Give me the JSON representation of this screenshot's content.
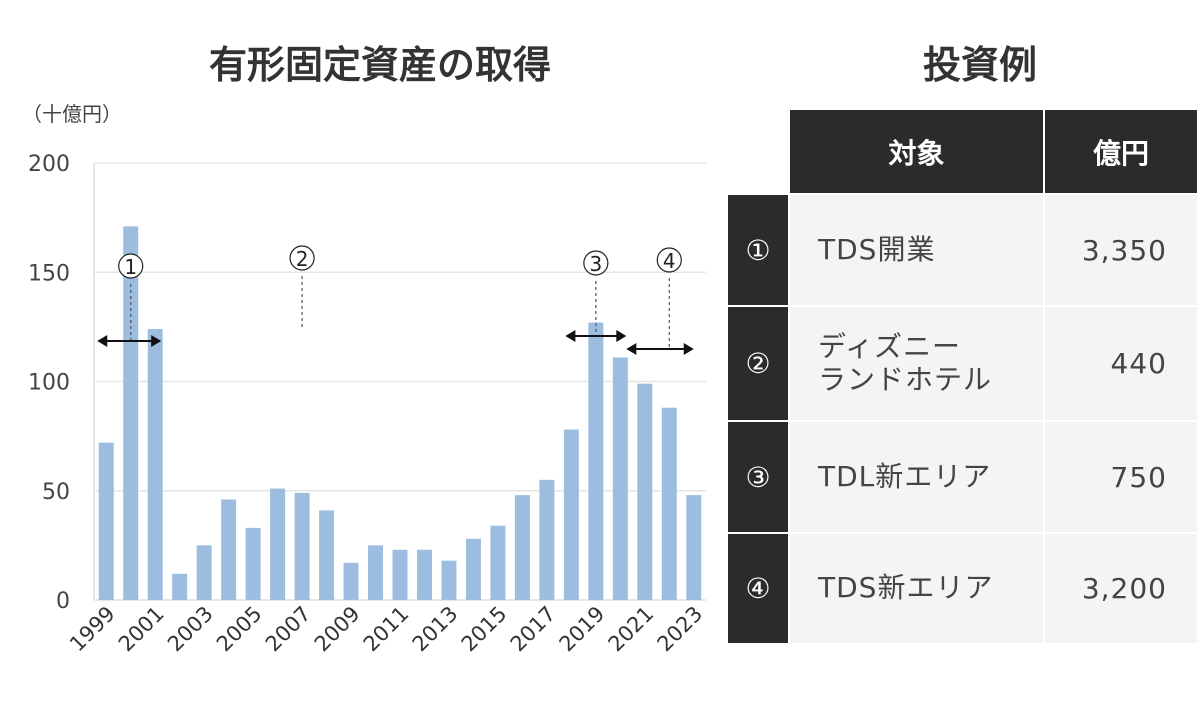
{
  "chart_data": {
    "type": "bar",
    "title": "有形固定資産の取得",
    "ylabel": "（十億円）",
    "ylim": [
      0,
      200
    ],
    "yticks": [
      0,
      50,
      100,
      150,
      200
    ],
    "grid": true,
    "bar_color": "#9dbde0",
    "categories": [
      "1999",
      "2000",
      "2001",
      "2002",
      "2003",
      "2004",
      "2005",
      "2006",
      "2007",
      "2008",
      "2009",
      "2010",
      "2011",
      "2012",
      "2013",
      "2014",
      "2015",
      "2016",
      "2017",
      "2018",
      "2019",
      "2020",
      "2021",
      "2022",
      "2023"
    ],
    "xtick_labels": [
      "1999",
      "2001",
      "2003",
      "2005",
      "2007",
      "2009",
      "2011",
      "2013",
      "2015",
      "2017",
      "2019",
      "2021",
      "2023"
    ],
    "values": [
      72,
      171,
      124,
      12,
      25,
      46,
      33,
      51,
      49,
      41,
      17,
      25,
      23,
      23,
      18,
      28,
      34,
      48,
      55,
      78,
      127,
      111,
      99,
      88,
      48
    ],
    "annotations": [
      {
        "label": "①",
        "year": "2000",
        "span": [
          "1999",
          "2001"
        ]
      },
      {
        "label": "②",
        "year": "2007"
      },
      {
        "label": "③",
        "year": "2019",
        "span": [
          "2018",
          "2020"
        ]
      },
      {
        "label": "④",
        "year": "2022",
        "span": [
          "2020",
          "2023"
        ]
      }
    ]
  },
  "table": {
    "title": "投資例",
    "headers": [
      "対象",
      "億円"
    ],
    "rows": [
      {
        "num": "①",
        "name": "TDS開業",
        "value": "3,350"
      },
      {
        "num": "②",
        "name": "ディズニー\nランドホテル",
        "value": "440"
      },
      {
        "num": "③",
        "name": "TDL新エリア",
        "value": "750"
      },
      {
        "num": "④",
        "name": "TDS新エリア",
        "value": "3,200"
      }
    ]
  }
}
